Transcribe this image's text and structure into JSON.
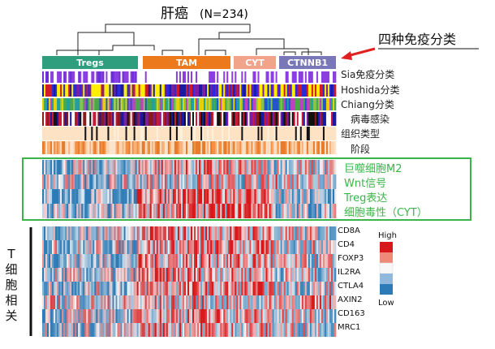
{
  "chart_data": {
    "type": "heatmap",
    "title": "肝癌",
    "subtitle": "(N=234)",
    "group_label": "四种免疫分类",
    "groups": [
      {
        "name": "Tregs",
        "color": "#2e9e7e"
      },
      {
        "name": "TAM",
        "color": "#ec7a1c"
      },
      {
        "name": "CYT",
        "color": "#f2a48a"
      },
      {
        "name": "CTNNB1",
        "color": "#7a77b8"
      }
    ],
    "annotation_tracks": [
      "Sia免疫分类",
      "Hoshida分类",
      "Chiang分类",
      "病毒感染",
      "组织类型",
      "阶段"
    ],
    "signature_rows": [
      "巨噬细胞M2",
      "Wnt信号",
      "Treg表达",
      "细胞毒性（CYT）"
    ],
    "gene_rows": [
      "CD8A",
      "CD4",
      "FOXP3",
      "IL2RA",
      "CTLA4",
      "AXIN2",
      "CD163",
      "MRC1"
    ],
    "side_label": "T细胞相关",
    "legend": {
      "high": "High",
      "low": "Low"
    },
    "colors": {
      "high": "#d7191c",
      "mid": "#f7f7f7",
      "low": "#2c7bb6",
      "highlight": "#3bb54a",
      "arrow": "#e02020"
    }
  }
}
